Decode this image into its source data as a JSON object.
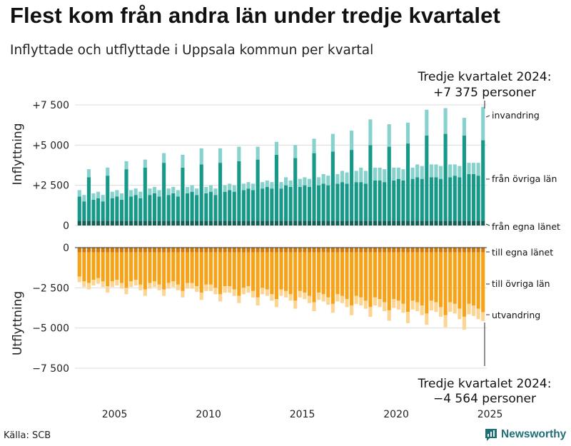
{
  "title": "Flest kom från andra län under tredje kvartalet",
  "subtitle": "Inflyttade och utflyttade i Uppsala kommun per kvartal",
  "source": "Källa: SCB",
  "brand": "Newsworthy",
  "colors": {
    "in_own": "#155e55",
    "in_other": "#17998a",
    "in_immig": "#88d2cd",
    "out_own": "#d07b0b",
    "out_other": "#f6a31a",
    "out_emig": "#fbd591"
  },
  "chart_data": [
    {
      "type": "bar",
      "stacked": true,
      "title": "Inflyttning",
      "ylabel": "Inflyttning",
      "ylim": [
        0,
        7500
      ],
      "yticks": [
        0,
        2500,
        5000,
        7500
      ],
      "ytick_labels": [
        "0",
        "+2 500",
        "+5 000",
        "+7 500"
      ],
      "x_start": 2003.0,
      "period": "kvartal",
      "series": [
        {
          "name": "från egna länet",
          "values": [
            300,
            300,
            300,
            300,
            300,
            300,
            300,
            300,
            300,
            300,
            300,
            300,
            300,
            300,
            300,
            300,
            300,
            300,
            300,
            300,
            300,
            300,
            300,
            300,
            300,
            300,
            300,
            300,
            300,
            300,
            300,
            300,
            300,
            300,
            300,
            300,
            300,
            300,
            300,
            300,
            300,
            300,
            300,
            300,
            300,
            300,
            300,
            300,
            300,
            300,
            300,
            300,
            300,
            300,
            300,
            300,
            300,
            300,
            300,
            300,
            300,
            300,
            300,
            300,
            300,
            300,
            300,
            300,
            300,
            300,
            300,
            300,
            300,
            300,
            300,
            300,
            300,
            300,
            300,
            300,
            300,
            300,
            300,
            300,
            300,
            300,
            300
          ]
        },
        {
          "name": "från övriga län",
          "values": [
            1500,
            1200,
            2700,
            1300,
            1400,
            1200,
            2800,
            1400,
            1500,
            1300,
            3200,
            1500,
            1600,
            1400,
            3300,
            1600,
            1700,
            1500,
            3600,
            1600,
            1700,
            1500,
            3300,
            1700,
            1800,
            1600,
            3500,
            1700,
            1800,
            1600,
            3600,
            1800,
            1900,
            1800,
            3700,
            1900,
            2000,
            1900,
            3800,
            2000,
            2100,
            2000,
            4100,
            2000,
            2200,
            2100,
            3900,
            2100,
            2200,
            2100,
            4200,
            2200,
            2300,
            2200,
            4300,
            2300,
            2400,
            2300,
            4400,
            2400,
            2400,
            2300,
            4700,
            2500,
            2500,
            2400,
            4600,
            2500,
            2600,
            2500,
            4800,
            2600,
            2700,
            2600,
            5300,
            2700,
            2700,
            2600,
            5400,
            2700,
            2800,
            2700,
            5300,
            2900,
            2900,
            2800,
            5000
          ]
        },
        {
          "name": "invandring",
          "values": [
            400,
            400,
            500,
            400,
            400,
            400,
            500,
            400,
            400,
            400,
            500,
            400,
            400,
            400,
            500,
            400,
            400,
            400,
            600,
            400,
            400,
            400,
            800,
            400,
            400,
            400,
            1000,
            400,
            400,
            400,
            900,
            400,
            400,
            400,
            900,
            400,
            400,
            400,
            800,
            400,
            400,
            400,
            800,
            400,
            500,
            400,
            800,
            500,
            500,
            500,
            900,
            500,
            600,
            600,
            1100,
            600,
            700,
            700,
            1200,
            700,
            900,
            800,
            1600,
            800,
            800,
            800,
            1400,
            800,
            700,
            700,
            1300,
            700,
            800,
            800,
            1600,
            800,
            800,
            800,
            1600,
            800,
            700,
            700,
            1100,
            700,
            700,
            800,
            2075
          ]
        }
      ]
    },
    {
      "type": "bar",
      "stacked": true,
      "title": "Utflyttning",
      "ylabel": "Utflyttning",
      "ylim": [
        -7500,
        0
      ],
      "yticks": [
        0,
        -2500,
        -5000,
        -7500
      ],
      "ytick_labels": [
        "0",
        "−2 500",
        "−5 000",
        "−7 500"
      ],
      "x_start": 2003.0,
      "period": "kvartal",
      "series": [
        {
          "name": "till egna länet",
          "values": [
            -300,
            -300,
            -300,
            -300,
            -300,
            -300,
            -300,
            -300,
            -300,
            -300,
            -300,
            -300,
            -300,
            -300,
            -300,
            -300,
            -300,
            -300,
            -300,
            -300,
            -300,
            -300,
            -300,
            -300,
            -300,
            -300,
            -300,
            -300,
            -300,
            -300,
            -300,
            -300,
            -300,
            -300,
            -300,
            -300,
            -300,
            -300,
            -300,
            -300,
            -300,
            -300,
            -300,
            -300,
            -300,
            -300,
            -300,
            -300,
            -300,
            -300,
            -300,
            -300,
            -300,
            -300,
            -300,
            -300,
            -300,
            -300,
            -300,
            -300,
            -300,
            -300,
            -300,
            -300,
            -300,
            -300,
            -300,
            -300,
            -300,
            -300,
            -300,
            -300,
            -300,
            -300,
            -300,
            -300,
            -300,
            -300,
            -300,
            -300,
            -300,
            -300,
            -300,
            -300,
            -300,
            -300,
            -300
          ]
        },
        {
          "name": "till övriga län",
          "values": [
            -1500,
            -1800,
            -1900,
            -1700,
            -1600,
            -1800,
            -2100,
            -1800,
            -1700,
            -1900,
            -2200,
            -1800,
            -1700,
            -2000,
            -2300,
            -1900,
            -1800,
            -2000,
            -2300,
            -1900,
            -1800,
            -2000,
            -2400,
            -1900,
            -1900,
            -2100,
            -2500,
            -2000,
            -2000,
            -2200,
            -2600,
            -2100,
            -2100,
            -2300,
            -2700,
            -2200,
            -2100,
            -2400,
            -2800,
            -2200,
            -2300,
            -2600,
            -2900,
            -2300,
            -2400,
            -2600,
            -3000,
            -2400,
            -2500,
            -2700,
            -3100,
            -2500,
            -2600,
            -2800,
            -3200,
            -2600,
            -2700,
            -2900,
            -3300,
            -2700,
            -2800,
            -3000,
            -3400,
            -2800,
            -2900,
            -3100,
            -3600,
            -2900,
            -3000,
            -3200,
            -3700,
            -3000,
            -3100,
            -3300,
            -3800,
            -3000,
            -3100,
            -3400,
            -3900,
            -3100,
            -3200,
            -3500,
            -4000,
            -3200,
            -3300,
            -3500,
            -3714
          ]
        },
        {
          "name": "utvandring",
          "values": [
            -350,
            -350,
            -400,
            -350,
            -350,
            -350,
            -400,
            -350,
            -350,
            -350,
            -400,
            -350,
            -350,
            -350,
            -400,
            -350,
            -350,
            -350,
            -400,
            -350,
            -350,
            -350,
            -400,
            -350,
            -350,
            -350,
            -450,
            -400,
            -400,
            -400,
            -450,
            -400,
            -400,
            -400,
            -450,
            -400,
            -400,
            -400,
            -500,
            -400,
            -400,
            -400,
            -500,
            -400,
            -400,
            -400,
            -500,
            -400,
            -400,
            -450,
            -550,
            -450,
            -450,
            -450,
            -550,
            -450,
            -450,
            -500,
            -600,
            -500,
            -500,
            -500,
            -600,
            -500,
            -500,
            -550,
            -650,
            -550,
            -550,
            -550,
            -700,
            -550,
            -550,
            -600,
            -700,
            -600,
            -600,
            -600,
            -750,
            -600,
            -600,
            -650,
            -800,
            -650,
            -650,
            -650,
            -550
          ]
        }
      ]
    }
  ],
  "x_axis": {
    "tick_labels": [
      "2005",
      "2010",
      "2015",
      "2020",
      "2025"
    ],
    "tick_values": [
      2005,
      2010,
      2015,
      2020,
      2025
    ]
  },
  "annotations": {
    "top_label": "Tredje kvartalet 2024:",
    "top_value": "+7 375 personer",
    "bottom_label": "Tredje kvartalet 2024:",
    "bottom_value": "−4 564 personer"
  },
  "legend": {
    "in_immig": "invandring",
    "in_other": "från övriga län",
    "in_own": "från egna länet",
    "out_own": "till egna länet",
    "out_other": "till övriga län",
    "out_emig": "utvandring"
  }
}
